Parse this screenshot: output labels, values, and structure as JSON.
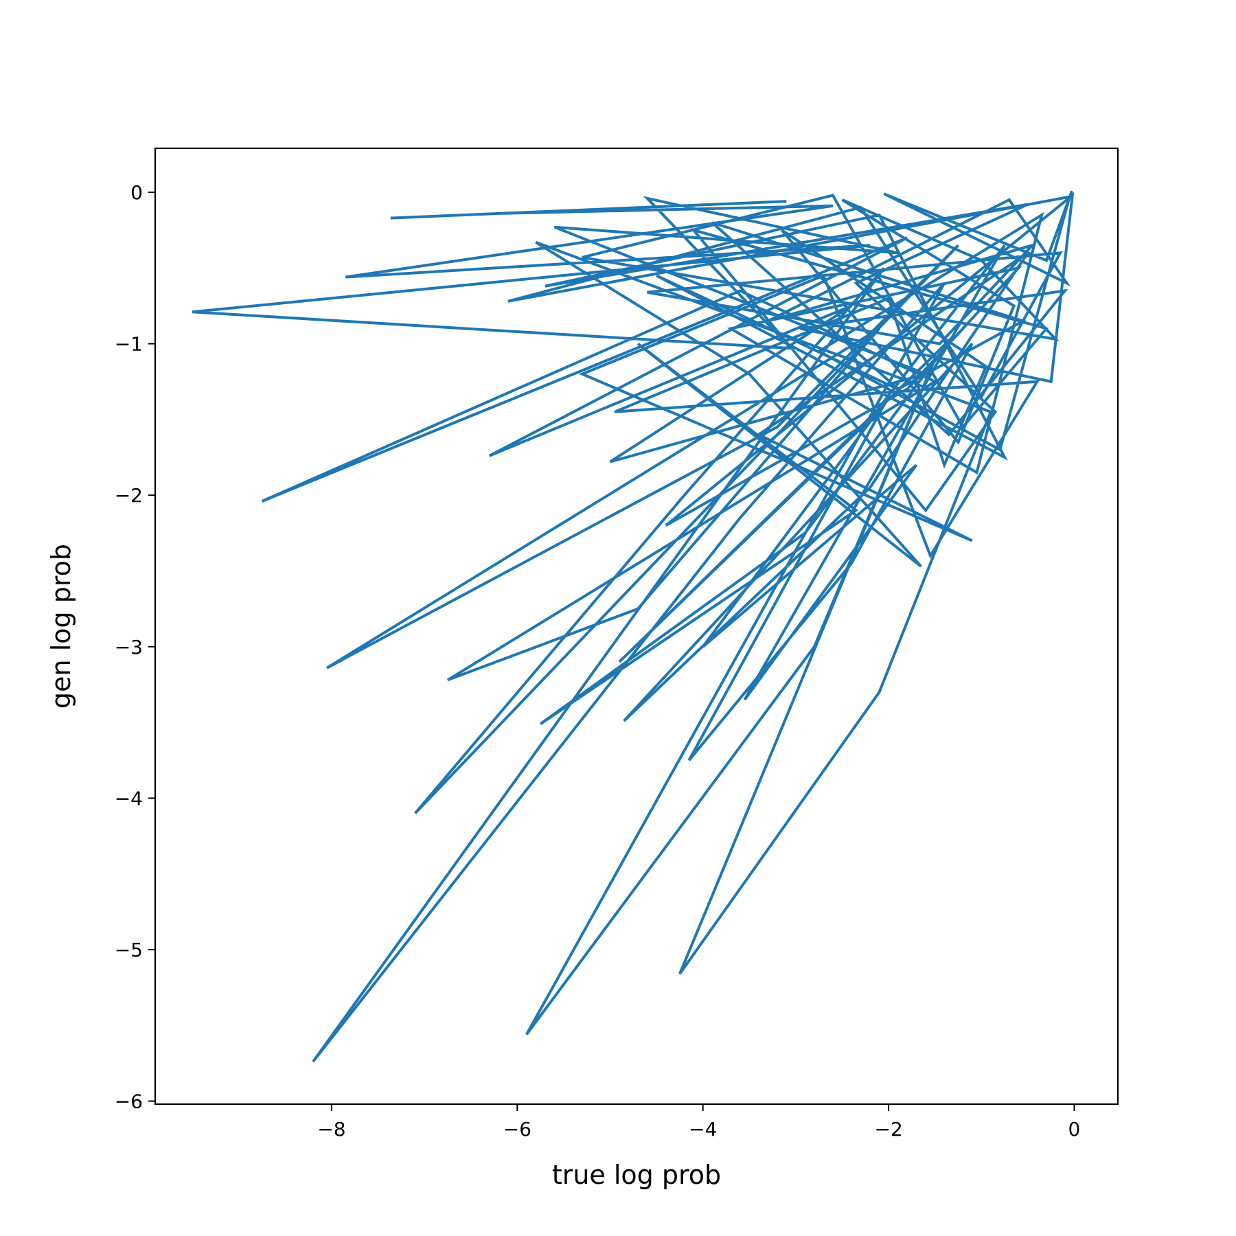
{
  "chart_data": {
    "type": "line",
    "title": "",
    "xlabel": "true log prob",
    "ylabel": "gen log prob",
    "xlim": [
      -9.9,
      0.47
    ],
    "ylim": [
      -6.02,
      0.29
    ],
    "xticks": [
      -8,
      -6,
      -4,
      -2,
      0
    ],
    "yticks": [
      0,
      -1,
      -2,
      -3,
      -4,
      -5,
      -6
    ],
    "xtick_labels": [
      "−8",
      "−6",
      "−4",
      "−2",
      "0"
    ],
    "ytick_labels": [
      "0",
      "−1",
      "−2",
      "−3",
      "−4",
      "−5",
      "−6"
    ],
    "grid": false,
    "legend": "none",
    "series": [
      {
        "color": "#1f77b4",
        "x": [
          -7.35,
          -3.1,
          -6.2,
          -2.6,
          -7.85,
          -2.2,
          -9.5,
          -3.05,
          -4.6,
          -1.9,
          -5.6,
          -1.6,
          -5.0,
          -2.4,
          -6.3,
          -1.8,
          -8.75,
          -3.6,
          -1.5,
          -6.75,
          -4.7,
          -2.1,
          -8.05,
          -3.2,
          -1.25,
          -7.1,
          -4.2,
          -2.05,
          -8.2,
          -3.6,
          -1.4,
          -5.9,
          -2.8,
          -1.5,
          -4.25,
          -2.1,
          -0.9,
          -5.8,
          -3.5,
          -1.65,
          -4.7,
          -2.35,
          -5.75,
          -2.9,
          -1.3,
          -4.9,
          -2.2,
          -0.75,
          -3.55,
          -1.7,
          -4.0,
          -2.0,
          -4.15,
          -2.4,
          -1.1,
          -4.85,
          -2.2,
          -0.5,
          -3.4,
          -1.1,
          -5.3,
          -2.7,
          -1.55,
          -0.4,
          -4.95,
          -2.0,
          -1.4,
          -0.95,
          -3.15,
          -1.25,
          -0.65,
          -2.5,
          -1.0,
          -0.2,
          -5.3,
          -2.6,
          -1.2,
          -0.3,
          -4.1,
          -1.6,
          -0.85,
          -2.35,
          -0.5,
          -5.7,
          -2.1,
          -0.75,
          -4.5,
          -1.9,
          -0.55,
          -3.9,
          -1.35,
          -0.1,
          -2.95,
          -0.25,
          -0.02,
          -4.4,
          -1.8,
          -0.6,
          -3.7,
          -1.05,
          -0.35,
          -2.75,
          -0.8,
          -0.05,
          -6.1,
          -2.3,
          -1.0,
          -0.15,
          -4.6,
          -1.45,
          -0.45,
          -3.3,
          -0.7,
          -0.08,
          -2.05,
          -0.3,
          -0.03
        ],
        "y": [
          -0.17,
          -0.06,
          -0.14,
          -0.09,
          -0.56,
          -0.35,
          -0.79,
          -1.03,
          -0.04,
          -0.4,
          -0.23,
          -1.2,
          -1.78,
          -0.75,
          -1.74,
          -0.3,
          -2.04,
          -0.65,
          -1.25,
          -3.22,
          -2.75,
          -0.9,
          -3.14,
          -1.55,
          -0.35,
          -4.1,
          -2.0,
          -0.5,
          -5.74,
          -2.15,
          -0.6,
          -5.56,
          -3.0,
          -1.1,
          -5.16,
          -3.3,
          -1.45,
          -0.33,
          -1.2,
          -2.47,
          -1.0,
          -2.1,
          -3.51,
          -2.25,
          -0.95,
          -3.1,
          -1.5,
          -0.35,
          -3.35,
          -1.8,
          -3.0,
          -1.35,
          -3.75,
          -2.45,
          -1.0,
          -3.49,
          -1.95,
          -0.4,
          -1.6,
          -2.3,
          -1.2,
          -0.55,
          -2.4,
          -1.25,
          -1.45,
          -0.7,
          -1.8,
          -1.15,
          -0.25,
          -1.65,
          -0.75,
          -0.05,
          -0.45,
          -0.97,
          -0.43,
          -0.02,
          -1.55,
          -0.9,
          -0.25,
          -2.1,
          -1.45,
          -0.6,
          -0.08,
          -0.62,
          -0.15,
          -1.75,
          -0.55,
          -1.3,
          -0.85,
          -0.2,
          -1.6,
          -0.65,
          -0.9,
          -1.25,
          -0.02,
          -2.2,
          -1.3,
          -0.5,
          -0.9,
          -1.85,
          -0.15,
          -1.05,
          -1.7,
          -0.03,
          -0.72,
          -0.1,
          -1.35,
          -0.4,
          -0.66,
          -1.0,
          -0.35,
          -0.85,
          -0.05,
          -0.6,
          -0.01,
          -0.45,
          0.0
        ]
      }
    ]
  }
}
